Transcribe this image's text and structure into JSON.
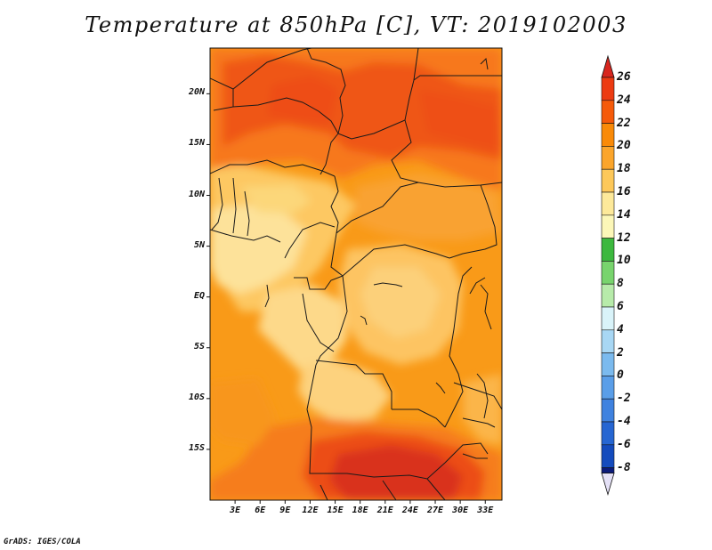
{
  "title": "Temperature at 850hPa [C], VT: 2019102003",
  "credit": "GrADS: IGES/COLA",
  "map": {
    "variable": "Temperature at 850hPa",
    "units": "C",
    "valid_time": "2019102003",
    "region": "Central Africa",
    "lat_range": [
      -20,
      24.5
    ],
    "lon_range": [
      0,
      35
    ],
    "lat_ticks": [
      {
        "value": 20,
        "label": "20N"
      },
      {
        "value": 15,
        "label": "15N"
      },
      {
        "value": 10,
        "label": "10N"
      },
      {
        "value": 5,
        "label": "5N"
      },
      {
        "value": 0,
        "label": "EQ"
      },
      {
        "value": -5,
        "label": "5S"
      },
      {
        "value": -10,
        "label": "10S"
      },
      {
        "value": -15,
        "label": "15S"
      }
    ],
    "lon_ticks": [
      {
        "value": 3,
        "label": "3E"
      },
      {
        "value": 6,
        "label": "6E"
      },
      {
        "value": 9,
        "label": "9E"
      },
      {
        "value": 12,
        "label": "12E"
      },
      {
        "value": 15,
        "label": "15E"
      },
      {
        "value": 18,
        "label": "18E"
      },
      {
        "value": 21,
        "label": "21E"
      },
      {
        "value": 24,
        "label": "24E"
      },
      {
        "value": 27,
        "label": "27E"
      },
      {
        "value": 30,
        "label": "30E"
      },
      {
        "value": 33,
        "label": "33E"
      }
    ]
  },
  "colorbar": {
    "levels": [
      26,
      24,
      22,
      20,
      18,
      16,
      14,
      12,
      10,
      8,
      6,
      4,
      2,
      0,
      -2,
      -4,
      -6,
      -8
    ],
    "labels": [
      "26",
      "24",
      "22",
      "20",
      "18",
      "16",
      "14",
      "12",
      "10",
      "8",
      "6",
      "4",
      "2",
      "0",
      "-2",
      "-4",
      "-6",
      "-8"
    ],
    "top_cap_color": "#d7261e",
    "bottom_cap_color": "#e4e0f6",
    "segment_colors": [
      "#ec3b12",
      "#f55a0a",
      "#f98a08",
      "#fba52b",
      "#fdc85a",
      "#fde99a",
      "#fcf7b8",
      "#3cb83e",
      "#78d46d",
      "#b7ebaa",
      "#d9f3f9",
      "#a8d7f4",
      "#7bbaee",
      "#5a9ee8",
      "#3f82df",
      "#2666d2",
      "#144bbd",
      "#0b1a7a"
    ]
  }
}
